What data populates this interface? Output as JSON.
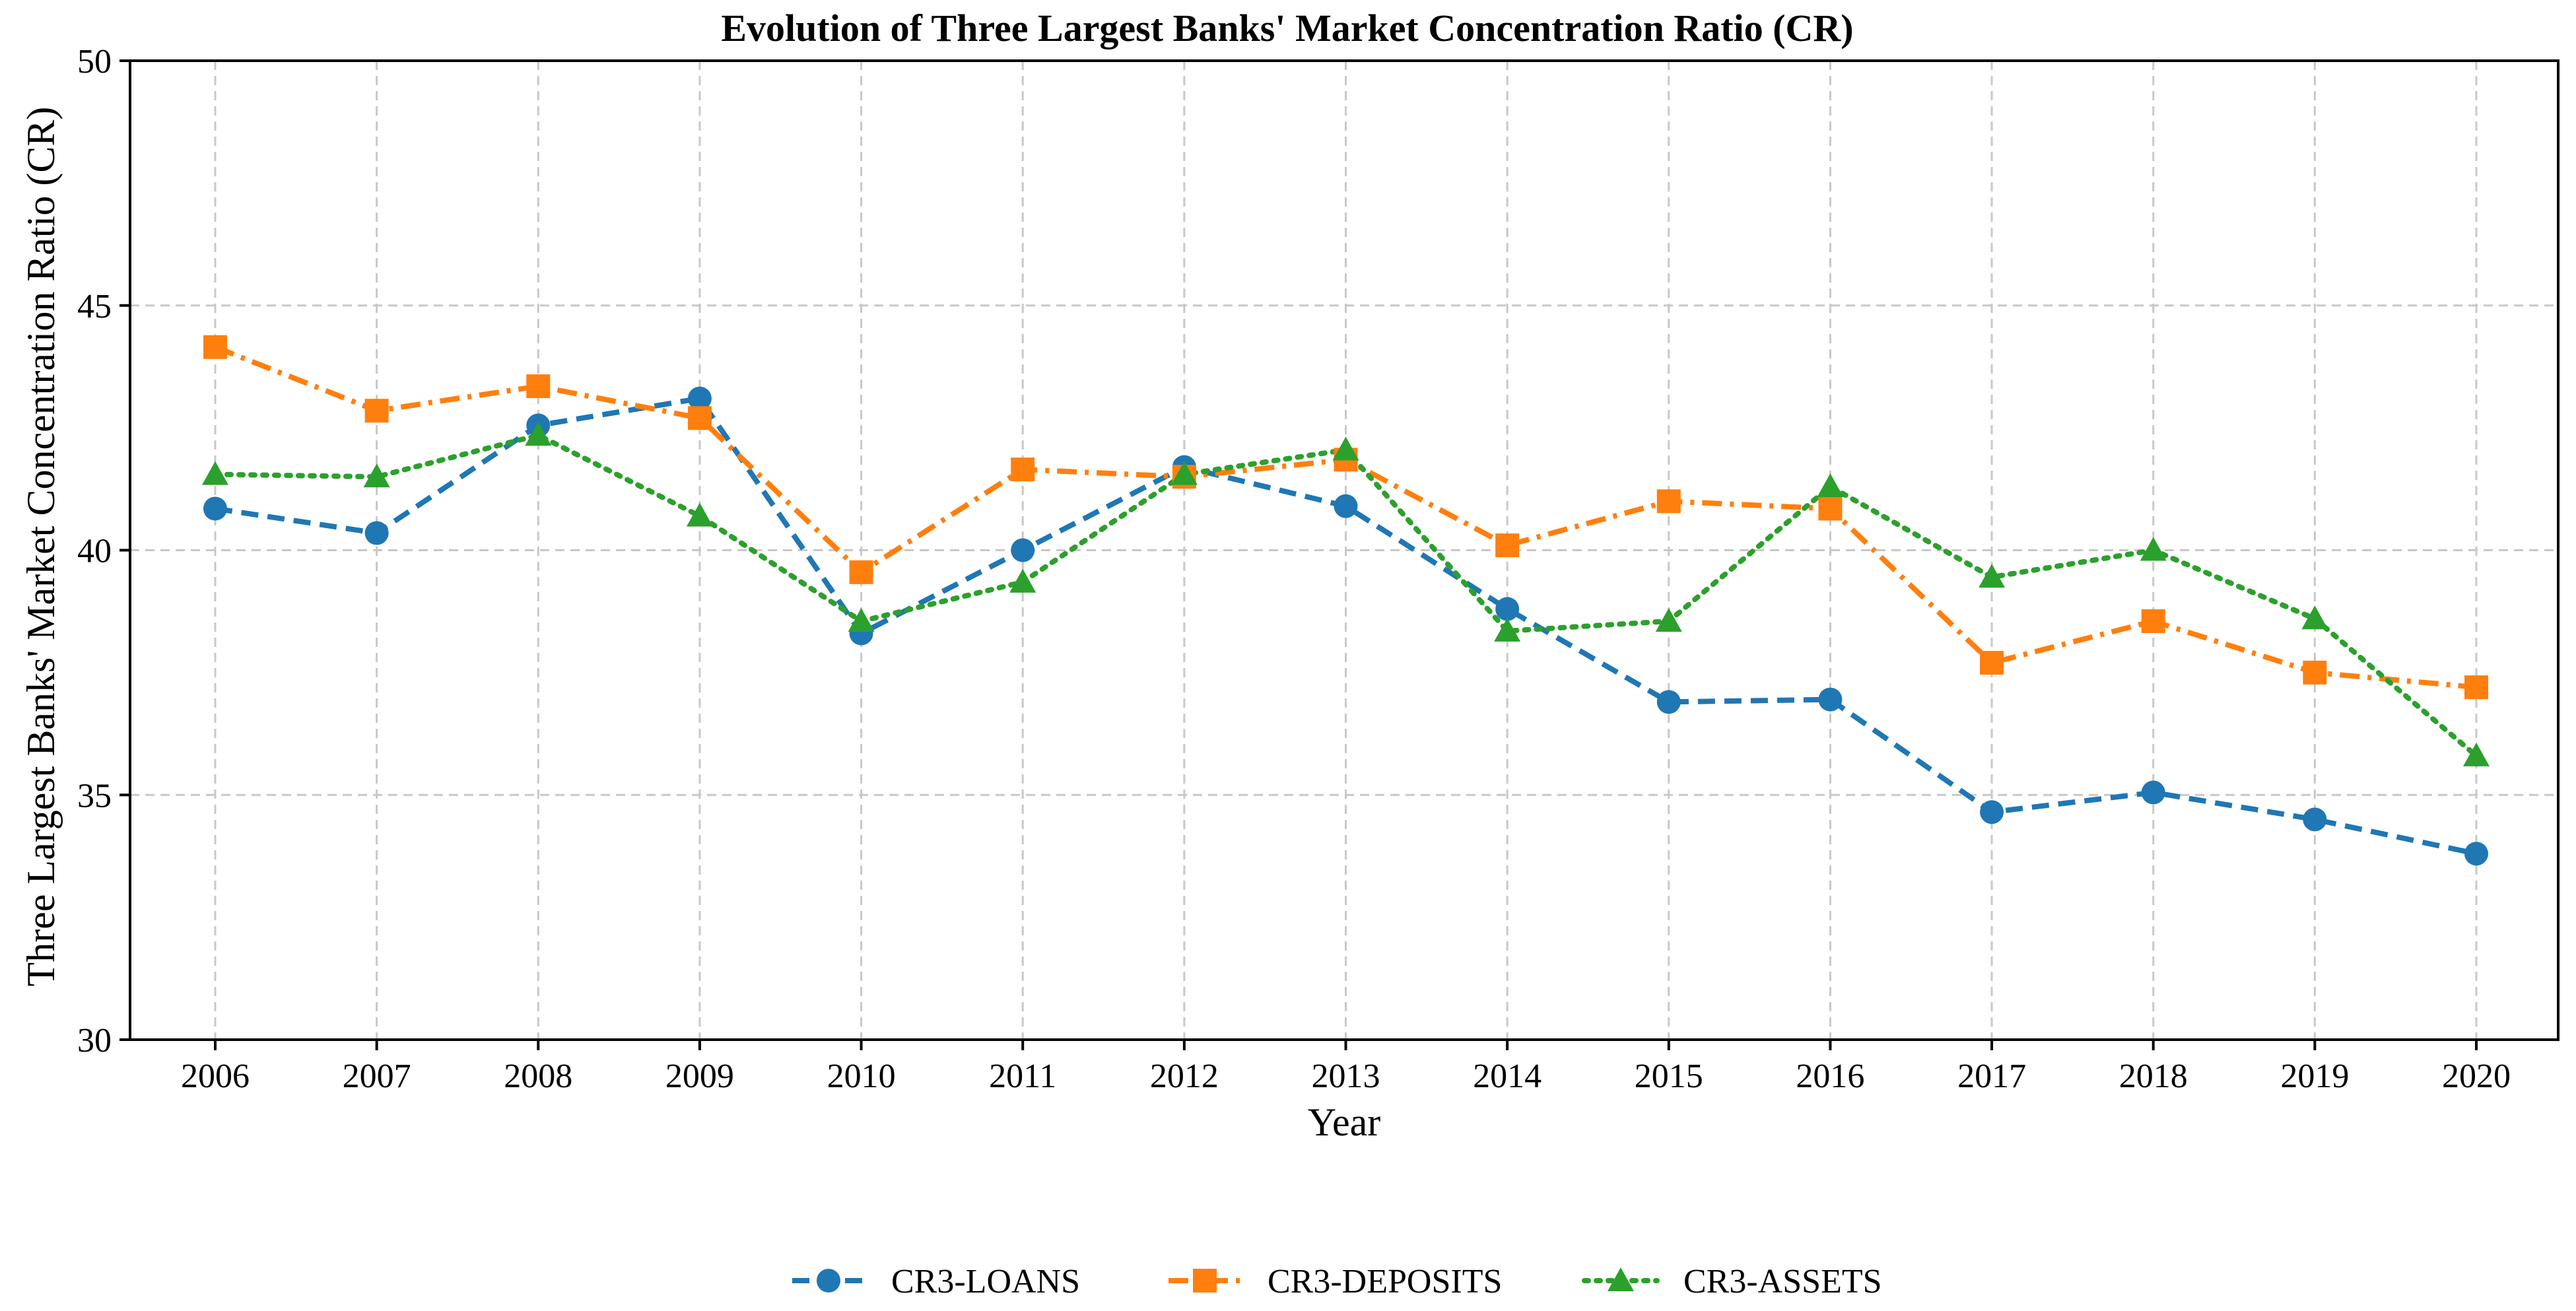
{
  "chart_data": {
    "type": "line",
    "title": "Evolution of Three Largest Banks' Market Concentration Ratio (CR)",
    "xlabel": "Year",
    "ylabel": "Three Largest Banks' Market Concentration Ratio (CR)",
    "categories": [
      "2006",
      "2007",
      "2008",
      "2009",
      "2010",
      "2011",
      "2012",
      "2013",
      "2014",
      "2015",
      "2016",
      "2017",
      "2018",
      "2019",
      "2020"
    ],
    "ylim": [
      30,
      50
    ],
    "yticks": [
      "30",
      "35",
      "40",
      "45",
      "50"
    ],
    "grid": true,
    "legend_position": "bottom-center",
    "series": [
      {
        "name": "CR3-LOANS",
        "color": "#1f77b4",
        "marker": "circle",
        "line_style": "dashed",
        "values": [
          40.85,
          40.35,
          42.55,
          43.1,
          38.3,
          40.0,
          41.7,
          40.9,
          38.8,
          36.9,
          36.95,
          34.65,
          35.05,
          34.5,
          33.8
        ]
      },
      {
        "name": "CR3-DEPOSITS",
        "color": "#ff7f0e",
        "marker": "square",
        "line_style": "dashdot",
        "values": [
          44.15,
          42.85,
          43.35,
          42.7,
          39.55,
          41.65,
          41.5,
          41.85,
          40.1,
          41.0,
          40.85,
          37.7,
          38.55,
          37.5,
          37.2
        ]
      },
      {
        "name": "CR3-ASSETS",
        "color": "#2ca02c",
        "marker": "triangle",
        "line_style": "dotted",
        "values": [
          41.55,
          41.5,
          42.35,
          40.7,
          38.55,
          39.35,
          41.55,
          42.05,
          38.35,
          38.55,
          41.3,
          39.45,
          40.0,
          38.6,
          35.8
        ]
      }
    ]
  }
}
